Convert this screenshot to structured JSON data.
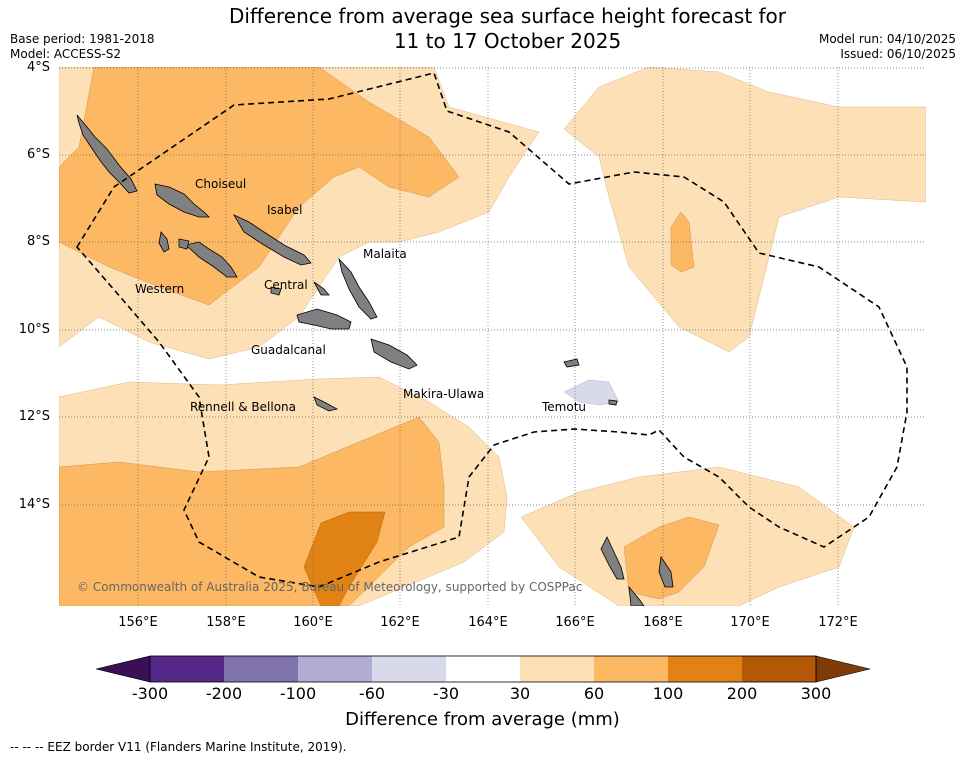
{
  "title": {
    "line1": "Difference from average sea surface height forecast for",
    "line2": "11 to 17 October 2025"
  },
  "meta": {
    "base_period": "Base period: 1981-2018",
    "model": "Model: ACCESS-S2",
    "model_run": "Model run: 04/10/2025",
    "issued": "Issued: 06/10/2025"
  },
  "axes": {
    "lat_labels": [
      "4°S",
      "6°S",
      "8°S",
      "10°S",
      "12°S",
      "14°S"
    ],
    "lon_labels": [
      "156°E",
      "158°E",
      "160°E",
      "162°E",
      "164°E",
      "166°E",
      "168°E",
      "170°E",
      "172°E"
    ]
  },
  "places": {
    "choiseul": "Choiseul",
    "isabel": "Isabel",
    "malaita": "Malaita",
    "western": "Western",
    "central": "Central",
    "guadalcanal": "Guadalcanal",
    "makira": "Makira-Ulawa",
    "rennell": "Rennell & Bellona",
    "temotu": "Temotu"
  },
  "copyright": "© Commonwealth of Australia 2025, Bureau of Meteorology, supported by COSPPac",
  "colorbar": {
    "label": "Difference from average (mm)",
    "ticks": [
      "-300",
      "-200",
      "-100",
      "-60",
      "-30",
      "30",
      "60",
      "100",
      "200",
      "300"
    ],
    "colors": {
      "below_min": "#3b0f55",
      "n300_200": "#542788",
      "n200_100": "#8073ac",
      "n100_60": "#b2abd2",
      "n60_30": "#d8daeb",
      "n30_30": "#ffffff",
      "p30_60": "#fee0b6",
      "p60_100": "#fdb863",
      "p100_200": "#e08214",
      "p200_300": "#b35806",
      "above_max": "#7f3b08"
    }
  },
  "footer": "--  --  -- EEZ border V11 (Flanders Marine Institute, 2019)."
}
